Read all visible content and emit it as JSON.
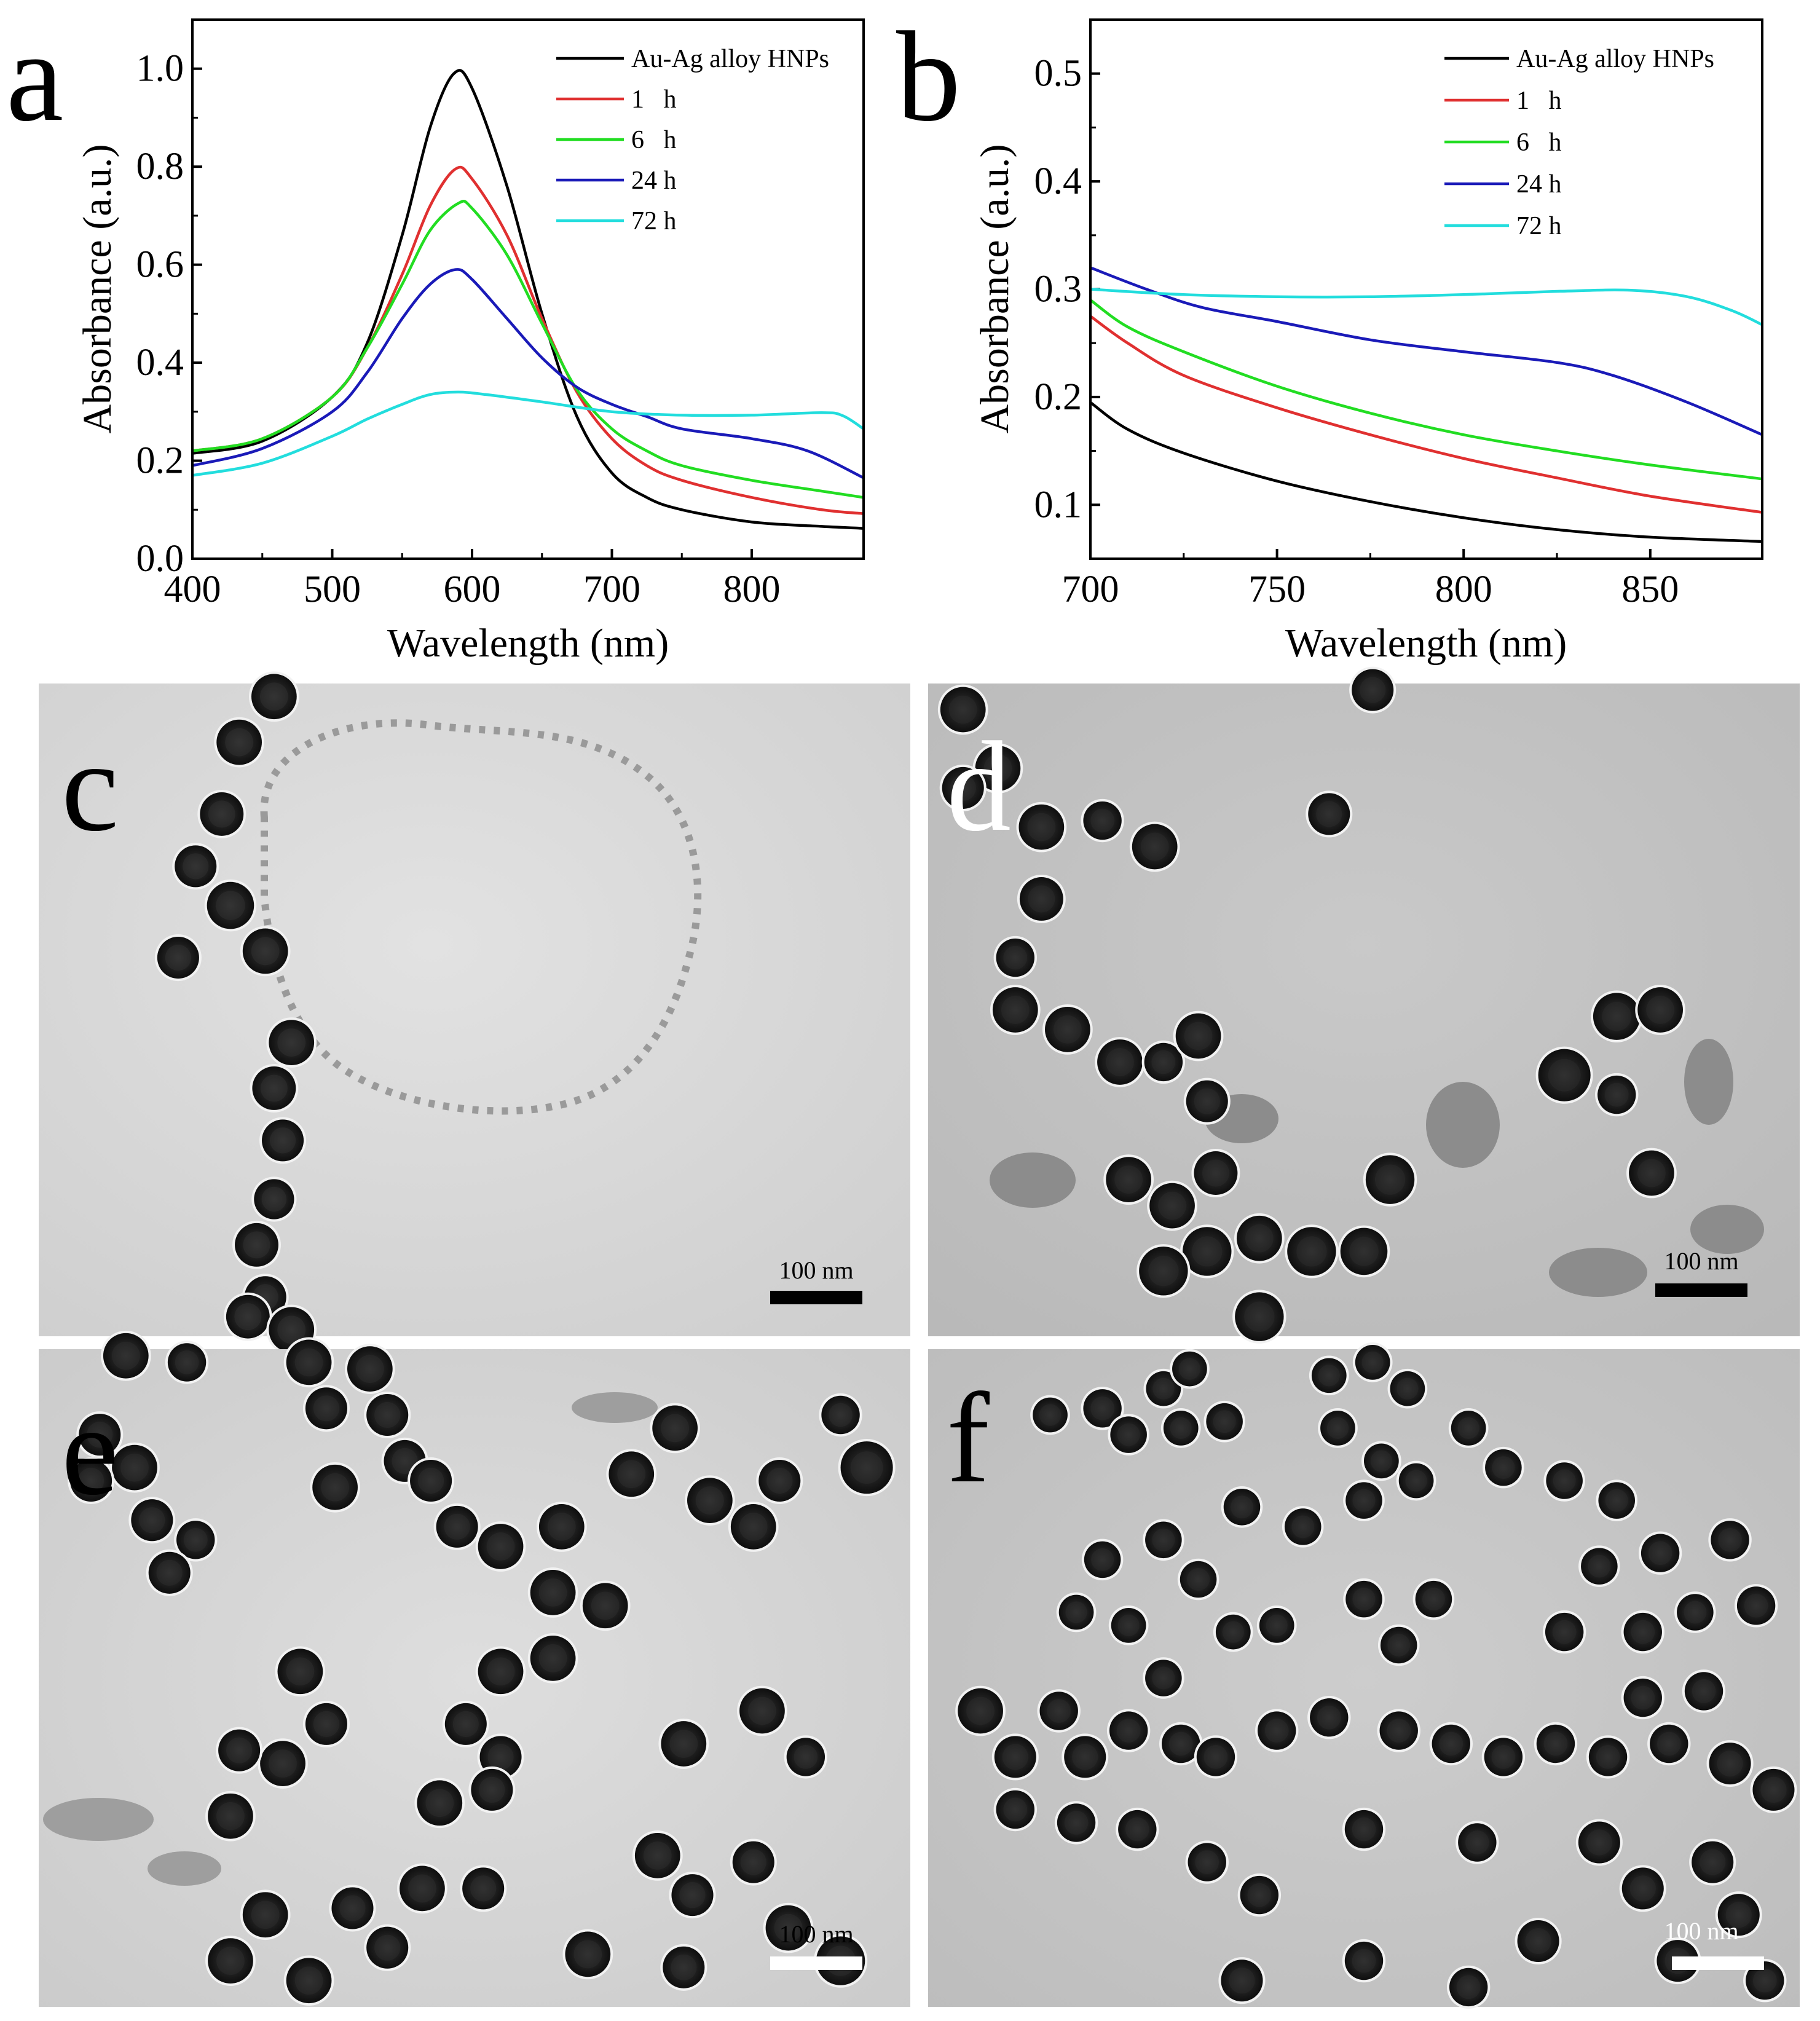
{
  "panel_letters": {
    "a": "a",
    "b": "b",
    "c": "c",
    "d": "d",
    "e": "e",
    "f": "f"
  },
  "scale_bars": {
    "c": "100 nm",
    "d": "100 nm",
    "e": "100 nm",
    "f": "100 nm"
  },
  "colors": {
    "Au-Ag alloy HNPs": "#000000",
    "1   h": "#e03030",
    "6   h": "#22dd22",
    "24 h": "#1a1ab8",
    "72 h": "#22dddd"
  },
  "chart_data": [
    {
      "id": "a",
      "type": "line",
      "xlabel": "Wavelength (nm)",
      "ylabel": "Absorbance (a.u.)",
      "xlim": [
        400,
        880
      ],
      "ylim": [
        0.0,
        1.1
      ],
      "xticks": [
        400,
        500,
        600,
        700,
        800
      ],
      "xtick_labels": [
        "400",
        "500",
        "600",
        "700",
        "800"
      ],
      "yticks": [
        0.0,
        0.2,
        0.4,
        0.6,
        0.8,
        1.0
      ],
      "ytick_labels": [
        "0.0",
        "0.2",
        "0.4",
        "0.6",
        "0.8",
        "1.0"
      ],
      "grid": false,
      "legend_position": "top-right",
      "series": [
        {
          "name": "Au-Ag alloy HNPs",
          "color": "#000000",
          "points": [
            [
              400,
              0.215
            ],
            [
              450,
              0.24
            ],
            [
              500,
              0.33
            ],
            [
              525,
              0.44
            ],
            [
              550,
              0.66
            ],
            [
              570,
              0.88
            ],
            [
              587,
              0.99
            ],
            [
              600,
              0.96
            ],
            [
              625,
              0.76
            ],
            [
              650,
              0.5
            ],
            [
              675,
              0.29
            ],
            [
              700,
              0.175
            ],
            [
              725,
              0.125
            ],
            [
              750,
              0.1
            ],
            [
              800,
              0.075
            ],
            [
              850,
              0.066
            ],
            [
              880,
              0.062
            ]
          ]
        },
        {
          "name": "1   h",
          "color": "#e03030",
          "points": [
            [
              400,
              0.22
            ],
            [
              450,
              0.245
            ],
            [
              500,
              0.33
            ],
            [
              525,
              0.43
            ],
            [
              550,
              0.58
            ],
            [
              570,
              0.72
            ],
            [
              588,
              0.795
            ],
            [
              600,
              0.775
            ],
            [
              625,
              0.66
            ],
            [
              650,
              0.49
            ],
            [
              675,
              0.34
            ],
            [
              700,
              0.245
            ],
            [
              725,
              0.19
            ],
            [
              750,
              0.16
            ],
            [
              800,
              0.125
            ],
            [
              850,
              0.1
            ],
            [
              880,
              0.092
            ]
          ]
        },
        {
          "name": "6   h",
          "color": "#22dd22",
          "points": [
            [
              400,
              0.22
            ],
            [
              450,
              0.245
            ],
            [
              500,
              0.33
            ],
            [
              525,
              0.43
            ],
            [
              550,
              0.56
            ],
            [
              570,
              0.67
            ],
            [
              590,
              0.725
            ],
            [
              600,
              0.715
            ],
            [
              625,
              0.62
            ],
            [
              650,
              0.48
            ],
            [
              675,
              0.345
            ],
            [
              700,
              0.265
            ],
            [
              725,
              0.22
            ],
            [
              750,
              0.19
            ],
            [
              800,
              0.16
            ],
            [
              850,
              0.138
            ],
            [
              880,
              0.125
            ]
          ]
        },
        {
          "name": "24 h",
          "color": "#1a1ab8",
          "points": [
            [
              400,
              0.19
            ],
            [
              450,
              0.225
            ],
            [
              500,
              0.3
            ],
            [
              525,
              0.38
            ],
            [
              550,
              0.49
            ],
            [
              570,
              0.56
            ],
            [
              588,
              0.59
            ],
            [
              600,
              0.57
            ],
            [
              625,
              0.49
            ],
            [
              650,
              0.41
            ],
            [
              675,
              0.35
            ],
            [
              700,
              0.315
            ],
            [
              725,
              0.29
            ],
            [
              750,
              0.265
            ],
            [
              800,
              0.245
            ],
            [
              840,
              0.22
            ],
            [
              880,
              0.165
            ]
          ]
        },
        {
          "name": "72 h",
          "color": "#22dddd",
          "points": [
            [
              400,
              0.17
            ],
            [
              450,
              0.195
            ],
            [
              500,
              0.25
            ],
            [
              525,
              0.285
            ],
            [
              550,
              0.315
            ],
            [
              570,
              0.335
            ],
            [
              590,
              0.34
            ],
            [
              610,
              0.335
            ],
            [
              650,
              0.32
            ],
            [
              700,
              0.3
            ],
            [
              750,
              0.293
            ],
            [
              800,
              0.293
            ],
            [
              850,
              0.298
            ],
            [
              865,
              0.292
            ],
            [
              880,
              0.265
            ]
          ]
        }
      ]
    },
    {
      "id": "b",
      "type": "line",
      "xlabel": "Wavelength (nm)",
      "ylabel": "Absorbance (a.u.)",
      "xlim": [
        700,
        880
      ],
      "ylim": [
        0.05,
        0.55
      ],
      "xticks": [
        700,
        750,
        800,
        850
      ],
      "xtick_labels": [
        "700",
        "750",
        "800",
        "850"
      ],
      "yticks": [
        0.1,
        0.2,
        0.3,
        0.4,
        0.5
      ],
      "ytick_labels": [
        "0.1",
        "0.2",
        "0.3",
        "0.4",
        "0.5"
      ],
      "grid": false,
      "legend_position": "top-right",
      "series": [
        {
          "name": "Au-Ag alloy HNPs",
          "color": "#000000",
          "points": [
            [
              700,
              0.195
            ],
            [
              710,
              0.17
            ],
            [
              725,
              0.148
            ],
            [
              750,
              0.122
            ],
            [
              775,
              0.103
            ],
            [
              800,
              0.088
            ],
            [
              825,
              0.077
            ],
            [
              850,
              0.07
            ],
            [
              880,
              0.066
            ]
          ]
        },
        {
          "name": "1   h",
          "color": "#e03030",
          "points": [
            [
              700,
              0.275
            ],
            [
              710,
              0.25
            ],
            [
              725,
              0.22
            ],
            [
              750,
              0.19
            ],
            [
              775,
              0.165
            ],
            [
              800,
              0.143
            ],
            [
              825,
              0.125
            ],
            [
              850,
              0.108
            ],
            [
              880,
              0.093
            ]
          ]
        },
        {
          "name": "6   h",
          "color": "#22dd22",
          "points": [
            [
              700,
              0.29
            ],
            [
              710,
              0.265
            ],
            [
              725,
              0.242
            ],
            [
              750,
              0.21
            ],
            [
              775,
              0.185
            ],
            [
              800,
              0.165
            ],
            [
              825,
              0.15
            ],
            [
              850,
              0.137
            ],
            [
              880,
              0.124
            ]
          ]
        },
        {
          "name": "24 h",
          "color": "#1a1ab8",
          "points": [
            [
              700,
              0.32
            ],
            [
              715,
              0.3
            ],
            [
              730,
              0.283
            ],
            [
              750,
              0.27
            ],
            [
              775,
              0.253
            ],
            [
              800,
              0.242
            ],
            [
              825,
              0.232
            ],
            [
              840,
              0.22
            ],
            [
              860,
              0.195
            ],
            [
              880,
              0.165
            ]
          ]
        },
        {
          "name": "72 h",
          "color": "#22dddd",
          "points": [
            [
              700,
              0.3
            ],
            [
              725,
              0.295
            ],
            [
              750,
              0.293
            ],
            [
              775,
              0.293
            ],
            [
              800,
              0.295
            ],
            [
              825,
              0.298
            ],
            [
              845,
              0.299
            ],
            [
              860,
              0.293
            ],
            [
              872,
              0.28
            ],
            [
              880,
              0.267
            ]
          ]
        }
      ]
    }
  ]
}
